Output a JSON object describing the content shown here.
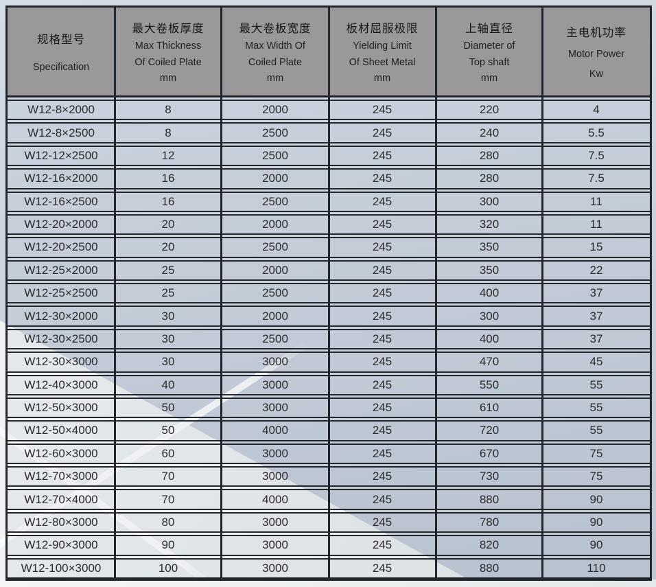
{
  "table": {
    "title_note": "W12 plate rolling machine specification table",
    "headers": [
      {
        "zh": "规格型号",
        "en": [
          "Specification"
        ],
        "unit": ""
      },
      {
        "zh": "最大卷板厚度",
        "en": [
          "Max Thickness",
          "Of Coiled Plate"
        ],
        "unit": "mm"
      },
      {
        "zh": "最大卷板宽度",
        "en": [
          "Max Width Of",
          "Coiled Plate"
        ],
        "unit": "mm"
      },
      {
        "zh": "板材屈服极限",
        "en": [
          "Yielding Limit",
          "Of Sheet Metal"
        ],
        "unit": "mm"
      },
      {
        "zh": "上轴直径",
        "en": [
          "Diameter of",
          "Top shaft"
        ],
        "unit": "mm"
      },
      {
        "zh": "主电机功率",
        "en": [
          "Motor Power"
        ],
        "unit": "Kw"
      }
    ],
    "rows": [
      [
        "W12-8×2000",
        "8",
        "2000",
        "245",
        "220",
        "4"
      ],
      [
        "W12-8×2500",
        "8",
        "2500",
        "245",
        "240",
        "5.5"
      ],
      [
        "W12-12×2500",
        "12",
        "2500",
        "245",
        "280",
        "7.5"
      ],
      [
        "W12-16×2000",
        "16",
        "2000",
        "245",
        "280",
        "7.5"
      ],
      [
        "W12-16×2500",
        "16",
        "2500",
        "245",
        "300",
        "11"
      ],
      [
        "W12-20×2000",
        "20",
        "2000",
        "245",
        "320",
        "11"
      ],
      [
        "W12-20×2500",
        "20",
        "2500",
        "245",
        "350",
        "15"
      ],
      [
        "W12-25×2000",
        "25",
        "2000",
        "245",
        "350",
        "22"
      ],
      [
        "W12-25×2500",
        "25",
        "2500",
        "245",
        "400",
        "37"
      ],
      [
        "W12-30×2000",
        "30",
        "2000",
        "245",
        "300",
        "37"
      ],
      [
        "W12-30×2500",
        "30",
        "2500",
        "245",
        "400",
        "37"
      ],
      [
        "W12-30×3000",
        "30",
        "3000",
        "245",
        "470",
        "45"
      ],
      [
        "W12-40×3000",
        "40",
        "3000",
        "245",
        "550",
        "55"
      ],
      [
        "W12-50×3000",
        "50",
        "3000",
        "245",
        "610",
        "55"
      ],
      [
        "W12-50×4000",
        "50",
        "4000",
        "245",
        "720",
        "55"
      ],
      [
        "W12-60×3000",
        "60",
        "3000",
        "245",
        "670",
        "75"
      ],
      [
        "W12-70×3000",
        "70",
        "3000",
        "245",
        "730",
        "75"
      ],
      [
        "W12-70×4000",
        "70",
        "4000",
        "245",
        "880",
        "90"
      ],
      [
        "W12-80×3000",
        "80",
        "3000",
        "245",
        "780",
        "90"
      ],
      [
        "W12-90×3000",
        "90",
        "3000",
        "245",
        "820",
        "90"
      ],
      [
        "W12-100×3000",
        "100",
        "3000",
        "245",
        "880",
        "110"
      ]
    ]
  },
  "colors": {
    "header_bg": "#9b9899",
    "border": "#22262c",
    "cell_text": "#2b2b2e",
    "base_background": "#cad2dc",
    "light_wedge": "#eff1f0",
    "ray_stripe": "#ffffff"
  }
}
